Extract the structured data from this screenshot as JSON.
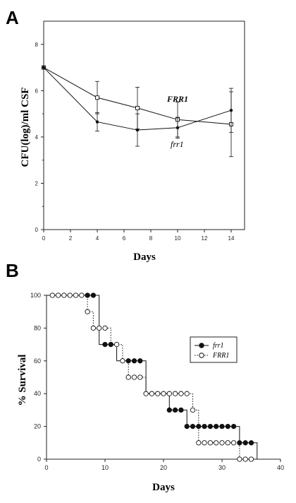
{
  "chart_data": [
    {
      "panel": "A",
      "type": "line",
      "xlabel": "Days",
      "ylabel": "CFU(log)/ml CSF",
      "xlim": [
        0,
        15
      ],
      "ylim": [
        0,
        9
      ],
      "xticks": [
        "0",
        "2",
        "4",
        "6",
        "8",
        "10",
        "12",
        "14"
      ],
      "yticks": [
        "0",
        "2",
        "4",
        "6",
        "8"
      ],
      "series": [
        {
          "name": "FRR1",
          "marker": "open-square",
          "x": [
            0,
            4,
            7,
            10,
            14
          ],
          "y": [
            7.0,
            5.7,
            5.25,
            4.75,
            4.55
          ],
          "err": [
            0,
            0.7,
            0.9,
            0.75,
            1.4
          ]
        },
        {
          "name": "frr1",
          "marker": "filled-circle",
          "x": [
            0,
            4,
            7,
            10,
            14
          ],
          "y": [
            7.0,
            4.65,
            4.3,
            4.4,
            5.15
          ],
          "err": [
            0,
            0.4,
            0.7,
            0.45,
            0.95
          ]
        }
      ],
      "grid": false,
      "legend": "labels next to lines"
    },
    {
      "panel": "B",
      "type": "line",
      "subtype": "survival-step",
      "xlabel": "Days",
      "ylabel": "% Survival",
      "xlim": [
        0,
        40
      ],
      "ylim": [
        0,
        100
      ],
      "xticks": [
        "0",
        "10",
        "20",
        "30",
        "40"
      ],
      "yticks": [
        "0",
        "20",
        "40",
        "60",
        "80",
        "100"
      ],
      "series": [
        {
          "name": "frr1",
          "marker": "filled-circle",
          "line": "solid",
          "steps": [
            [
              0,
              100
            ],
            [
              9,
              100
            ],
            [
              9,
              70
            ],
            [
              12,
              70
            ],
            [
              12,
              60
            ],
            [
              17,
              60
            ],
            [
              17,
              40
            ],
            [
              21,
              40
            ],
            [
              21,
              30
            ],
            [
              24,
              30
            ],
            [
              24,
              20
            ],
            [
              33,
              20
            ],
            [
              33,
              10
            ],
            [
              36,
              10
            ],
            [
              36,
              0
            ]
          ],
          "markers": [
            [
              7,
              100
            ],
            [
              8,
              100
            ],
            [
              10,
              70
            ],
            [
              11,
              70
            ],
            [
              14,
              60
            ],
            [
              15,
              60
            ],
            [
              16,
              60
            ],
            [
              21,
              30
            ],
            [
              22,
              30
            ],
            [
              23,
              30
            ],
            [
              24,
              20
            ],
            [
              25,
              20
            ],
            [
              26,
              20
            ],
            [
              27,
              20
            ],
            [
              28,
              20
            ],
            [
              29,
              20
            ],
            [
              30,
              20
            ],
            [
              31,
              20
            ],
            [
              32,
              20
            ],
            [
              33,
              10
            ],
            [
              34,
              10
            ],
            [
              35,
              10
            ]
          ]
        },
        {
          "name": "FRR1",
          "marker": "open-circle",
          "line": "dotted",
          "steps": [
            [
              0,
              100
            ],
            [
              7,
              100
            ],
            [
              7,
              90
            ],
            [
              8,
              90
            ],
            [
              8,
              80
            ],
            [
              11,
              80
            ],
            [
              11,
              70
            ],
            [
              13,
              70
            ],
            [
              13,
              60
            ],
            [
              14,
              60
            ],
            [
              14,
              50
            ],
            [
              17,
              50
            ],
            [
              17,
              40
            ],
            [
              25,
              40
            ],
            [
              25,
              30
            ],
            [
              26,
              30
            ],
            [
              26,
              10
            ],
            [
              33,
              10
            ],
            [
              33,
              0
            ],
            [
              36,
              0
            ]
          ],
          "markers": [
            [
              1,
              100
            ],
            [
              2,
              100
            ],
            [
              3,
              100
            ],
            [
              4,
              100
            ],
            [
              5,
              100
            ],
            [
              6,
              100
            ],
            [
              7,
              90
            ],
            [
              8,
              80
            ],
            [
              9,
              80
            ],
            [
              10,
              80
            ],
            [
              11,
              70
            ],
            [
              12,
              70
            ],
            [
              13,
              60
            ],
            [
              14,
              50
            ],
            [
              15,
              50
            ],
            [
              16,
              50
            ],
            [
              17,
              40
            ],
            [
              18,
              40
            ],
            [
              19,
              40
            ],
            [
              20,
              40
            ],
            [
              21,
              40
            ],
            [
              22,
              40
            ],
            [
              23,
              40
            ],
            [
              24,
              40
            ],
            [
              25,
              30
            ],
            [
              26,
              10
            ],
            [
              27,
              10
            ],
            [
              28,
              10
            ],
            [
              29,
              10
            ],
            [
              30,
              10
            ],
            [
              31,
              10
            ],
            [
              32,
              10
            ],
            [
              33,
              0
            ],
            [
              34,
              0
            ],
            [
              35,
              0
            ]
          ]
        }
      ],
      "grid": false,
      "legend": "top-right"
    }
  ]
}
